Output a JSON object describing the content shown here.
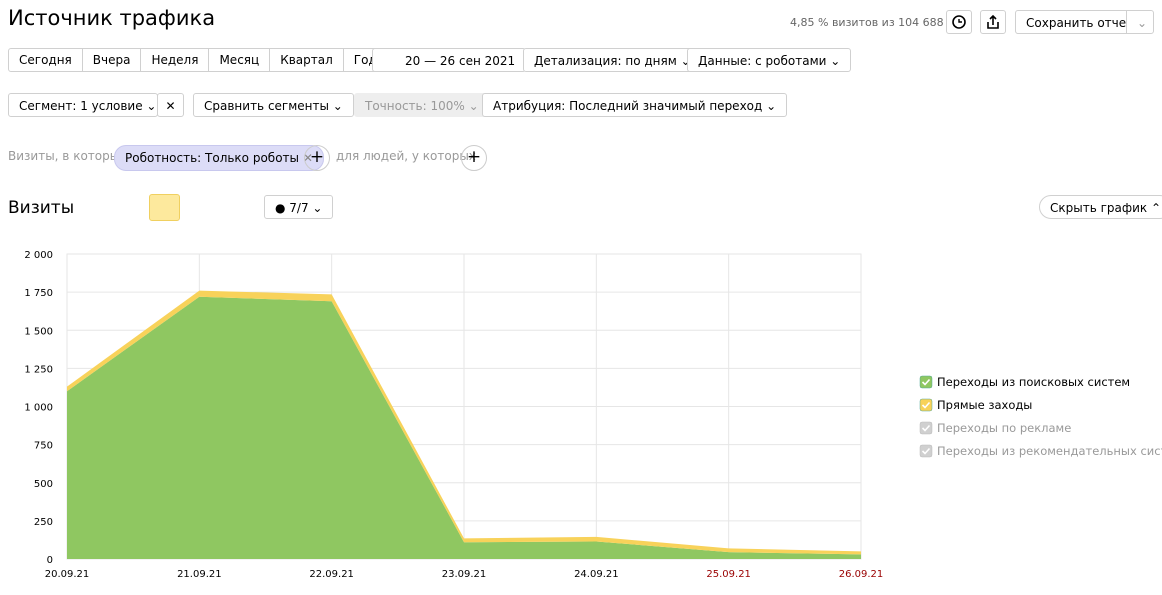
{
  "header": {
    "title": "Источник трафика",
    "summary": "4,85 % визитов из 104 688",
    "save_button": "Сохранить отчет"
  },
  "periods": [
    "Сегодня",
    "Вчера",
    "Неделя",
    "Месяц",
    "Квартал",
    "Год"
  ],
  "date_range": "20 — 26 сен 2021",
  "detail": "Детализация: по дням",
  "robots": "Данные: с роботами",
  "segment": "Сегмент: 1 условие",
  "compare": "Сравнить сегменты",
  "accuracy": "Точность: 100%",
  "attribution": "Атрибуция: Последний значимый переход",
  "filter": {
    "prefix": "Визиты, в которых",
    "chip": "Роботность: Только роботы",
    "people": "для людей, у которых"
  },
  "metric": "Визиты",
  "notes": "7/7",
  "hide_chart": "Скрыть график",
  "chart_data": {
    "type": "stacked-area",
    "categories": [
      "20.09.21",
      "21.09.21",
      "22.09.21",
      "23.09.21",
      "24.09.21",
      "25.09.21",
      "26.09.21"
    ],
    "category_colors": [
      "#000000",
      "#000000",
      "#000000",
      "#000000",
      "#000000",
      "#990000",
      "#990000"
    ],
    "series": [
      {
        "name": "Переходы из поисковых систем",
        "color": "#8fc761",
        "enabled": true,
        "values": [
          1100,
          1720,
          1690,
          110,
          115,
          45,
          30
        ]
      },
      {
        "name": "Прямые заходы",
        "color": "#f8d25a",
        "enabled": true,
        "values": [
          30,
          40,
          45,
          25,
          30,
          25,
          20
        ]
      },
      {
        "name": "Переходы по рекламе",
        "color": "#cccccc",
        "enabled": false,
        "values": [
          null,
          null,
          null,
          null,
          null,
          null,
          null
        ]
      },
      {
        "name": "Переходы из рекомендательных систем",
        "color": "#cccccc",
        "enabled": false,
        "values": [
          null,
          null,
          null,
          null,
          null,
          null,
          null
        ]
      }
    ],
    "ylim": [
      0,
      2000
    ],
    "yticks": [
      0,
      250,
      500,
      750,
      {
        "value": 1000,
        "label": "1 000"
      },
      {
        "value": 1250,
        "label": "1 250"
      },
      {
        "value": 1500,
        "label": "1 500"
      },
      {
        "value": 1750,
        "label": "1 750"
      },
      {
        "value": 2000,
        "label": "2 000"
      }
    ],
    "grid": true
  }
}
